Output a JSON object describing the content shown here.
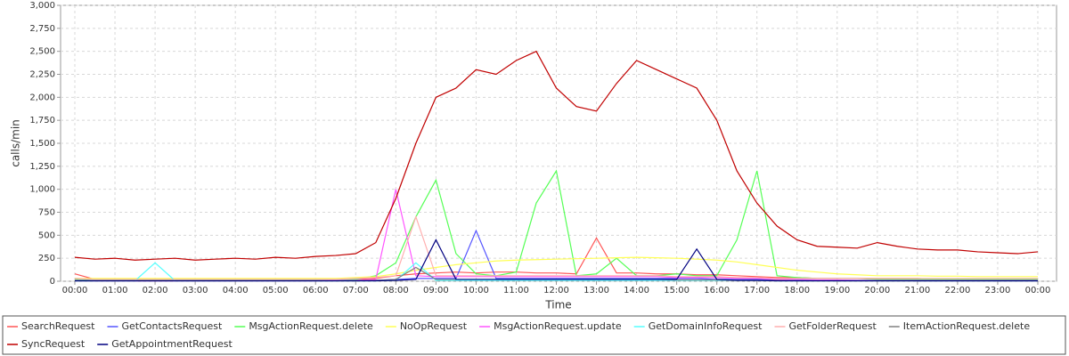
{
  "chart_data": {
    "type": "line",
    "x_label": "Time",
    "y_label": "calls/min",
    "categories": [
      "00:00",
      null,
      "01:00",
      null,
      "02:00",
      null,
      "03:00",
      null,
      "04:00",
      null,
      "05:00",
      null,
      "06:00",
      null,
      "07:00",
      null,
      "08:00",
      null,
      "09:00",
      null,
      "10:00",
      null,
      "11:00",
      null,
      "12:00",
      null,
      "13:00",
      null,
      "14:00",
      null,
      "15:00",
      null,
      "16:00",
      null,
      "17:00",
      null,
      "18:00",
      null,
      "19:00",
      null,
      "20:00",
      null,
      "21:00",
      null,
      "22:00",
      null,
      "23:00",
      null,
      "00:00"
    ],
    "ylim": [
      0,
      3000
    ],
    "yticks": [
      0,
      250,
      500,
      750,
      {
        "value": 1000,
        "label": "1,000"
      },
      {
        "value": 1250,
        "label": "1,250"
      },
      {
        "value": 1500,
        "label": "1,500"
      },
      {
        "value": 1750,
        "label": "1,750"
      },
      {
        "value": 2000,
        "label": "2,000"
      },
      {
        "value": 2250,
        "label": "2,250"
      },
      {
        "value": 2500,
        "label": "2,500"
      },
      {
        "value": 2750,
        "label": "2,750"
      },
      {
        "value": 3000,
        "label": "3,000"
      }
    ],
    "grid": true,
    "legend": "bottom",
    "series": [
      {
        "name": "SearchRequest",
        "color": "#ff5555",
        "values": [
          80,
          20,
          15,
          10,
          10,
          10,
          10,
          10,
          10,
          10,
          10,
          10,
          10,
          15,
          20,
          30,
          60,
          80,
          90,
          100,
          90,
          100,
          100,
          90,
          90,
          80,
          470,
          90,
          90,
          80,
          80,
          70,
          70,
          60,
          50,
          40,
          40,
          30,
          30,
          30,
          30,
          30,
          30,
          20,
          20,
          20,
          20,
          20,
          20
        ]
      },
      {
        "name": "GetContactsRequest",
        "color": "#5555ff",
        "values": [
          5,
          5,
          5,
          5,
          5,
          5,
          5,
          5,
          5,
          5,
          5,
          5,
          5,
          5,
          10,
          10,
          20,
          30,
          30,
          30,
          550,
          30,
          30,
          30,
          30,
          30,
          30,
          30,
          30,
          30,
          30,
          30,
          20,
          20,
          20,
          15,
          10,
          10,
          10,
          10,
          10,
          10,
          5,
          5,
          5,
          5,
          5,
          5,
          5
        ]
      },
      {
        "name": "MsgActionRequest.delete",
        "color": "#55ff55",
        "values": [
          20,
          10,
          10,
          10,
          10,
          10,
          10,
          10,
          10,
          10,
          10,
          10,
          10,
          15,
          20,
          60,
          200,
          700,
          1100,
          300,
          80,
          60,
          100,
          850,
          1200,
          60,
          80,
          250,
          60,
          60,
          80,
          60,
          60,
          450,
          1200,
          60,
          40,
          30,
          30,
          30,
          20,
          20,
          20,
          20,
          20,
          20,
          20,
          20,
          20
        ]
      },
      {
        "name": "NoOpRequest",
        "color": "#ffff55",
        "values": [
          30,
          30,
          30,
          30,
          30,
          30,
          30,
          30,
          30,
          30,
          30,
          30,
          30,
          30,
          40,
          50,
          80,
          120,
          150,
          180,
          200,
          220,
          230,
          235,
          240,
          245,
          250,
          255,
          260,
          255,
          250,
          240,
          230,
          210,
          180,
          150,
          120,
          100,
          80,
          70,
          60,
          60,
          60,
          55,
          55,
          50,
          50,
          50,
          50
        ]
      },
      {
        "name": "MsgActionRequest.update",
        "color": "#ff55ff",
        "values": [
          10,
          5,
          5,
          5,
          5,
          5,
          5,
          5,
          5,
          5,
          5,
          5,
          5,
          10,
          10,
          20,
          1000,
          60,
          50,
          50,
          50,
          50,
          50,
          50,
          50,
          50,
          50,
          50,
          50,
          50,
          40,
          40,
          40,
          30,
          30,
          20,
          20,
          15,
          15,
          10,
          10,
          10,
          10,
          10,
          10,
          10,
          10,
          10,
          10
        ]
      },
      {
        "name": "GetDomainInfoRequest",
        "color": "#55ffff",
        "values": [
          5,
          5,
          5,
          5,
          200,
          5,
          5,
          5,
          5,
          5,
          5,
          5,
          5,
          5,
          5,
          5,
          10,
          200,
          10,
          10,
          10,
          10,
          10,
          10,
          10,
          10,
          10,
          10,
          10,
          10,
          10,
          10,
          10,
          10,
          10,
          5,
          5,
          5,
          5,
          5,
          5,
          5,
          5,
          5,
          5,
          5,
          5,
          5,
          5
        ]
      },
      {
        "name": "GetFolderRequest",
        "color": "#ffafaf",
        "values": [
          30,
          20,
          20,
          20,
          20,
          20,
          20,
          20,
          20,
          20,
          20,
          20,
          20,
          20,
          30,
          40,
          60,
          700,
          60,
          60,
          60,
          60,
          60,
          60,
          60,
          60,
          60,
          60,
          60,
          60,
          50,
          50,
          50,
          40,
          40,
          30,
          30,
          30,
          30,
          30,
          30,
          30,
          30,
          30,
          30,
          30,
          30,
          30,
          30
        ]
      },
      {
        "name": "ItemActionRequest.delete",
        "color": "#808080",
        "values": [
          5,
          5,
          5,
          5,
          5,
          5,
          5,
          5,
          5,
          5,
          5,
          5,
          5,
          5,
          5,
          10,
          20,
          150,
          20,
          20,
          20,
          20,
          20,
          20,
          20,
          20,
          20,
          20,
          20,
          20,
          15,
          15,
          15,
          10,
          10,
          10,
          5,
          5,
          5,
          5,
          5,
          5,
          5,
          5,
          5,
          5,
          5,
          5,
          5
        ]
      },
      {
        "name": "SyncRequest",
        "color": "#c00000",
        "values": [
          260,
          240,
          250,
          230,
          240,
          250,
          230,
          240,
          250,
          240,
          260,
          250,
          270,
          280,
          300,
          420,
          900,
          1500,
          2000,
          2100,
          2300,
          2250,
          2400,
          2500,
          2100,
          1900,
          1850,
          2150,
          2400,
          2300,
          2200,
          2100,
          1750,
          1200,
          850,
          600,
          450,
          380,
          370,
          360,
          420,
          380,
          350,
          340,
          340,
          320,
          310,
          300,
          320
        ]
      },
      {
        "name": "GetAppointmentRequest",
        "color": "#000080",
        "values": [
          5,
          5,
          5,
          5,
          5,
          5,
          5,
          5,
          5,
          5,
          5,
          5,
          5,
          5,
          5,
          5,
          10,
          20,
          450,
          20,
          20,
          20,
          20,
          20,
          20,
          20,
          20,
          20,
          20,
          20,
          20,
          350,
          20,
          10,
          10,
          5,
          5,
          5,
          5,
          5,
          5,
          5,
          5,
          5,
          5,
          5,
          5,
          5,
          5
        ]
      }
    ]
  }
}
